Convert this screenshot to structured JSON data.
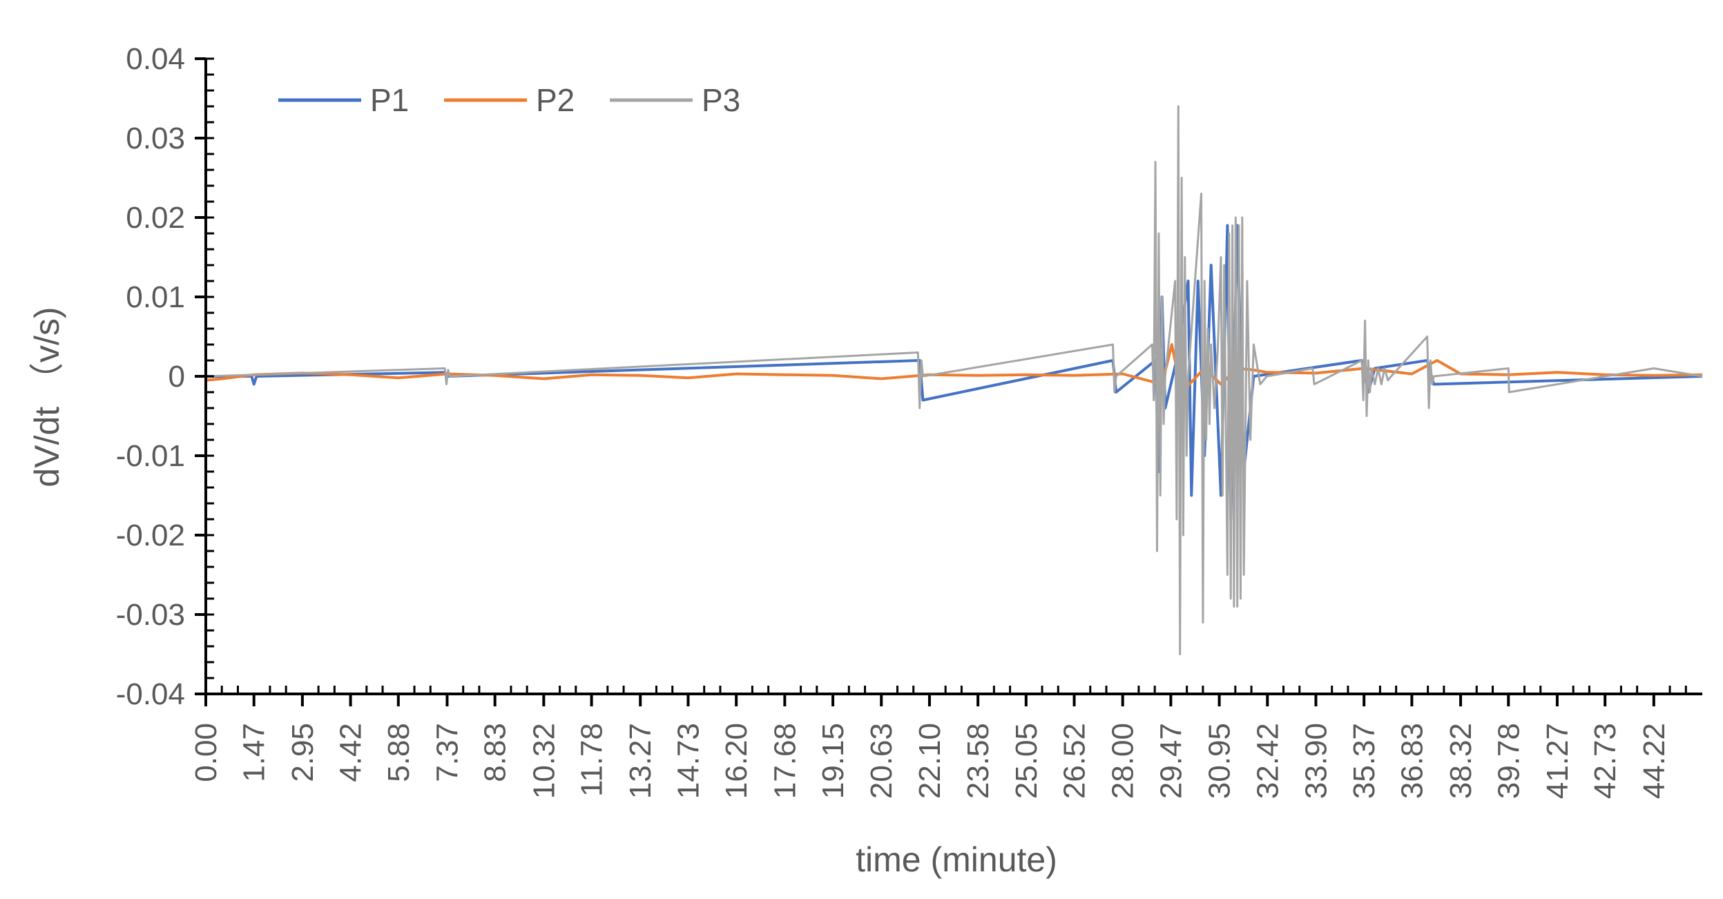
{
  "chart_data": {
    "type": "line",
    "title": "",
    "xlabel": "time (minute)",
    "ylabel": "dV/dt （v/s)",
    "xlim": [
      0,
      45.7
    ],
    "ylim": [
      -0.04,
      0.04
    ],
    "y_ticks": [
      0.04,
      0.03,
      0.02,
      0.01,
      0,
      -0.01,
      -0.02,
      -0.03,
      -0.04
    ],
    "y_tick_labels": [
      "0.04",
      "0.03",
      "0.02",
      "0.01",
      "0",
      "-0.01",
      "-0.02",
      "-0.03",
      "-0.04"
    ],
    "x_ticks": [
      0.0,
      1.47,
      2.95,
      4.42,
      5.88,
      7.37,
      8.83,
      10.32,
      11.78,
      13.27,
      14.73,
      16.2,
      17.68,
      19.15,
      20.63,
      22.1,
      23.58,
      25.05,
      26.52,
      28.0,
      29.47,
      30.95,
      32.42,
      33.9,
      35.37,
      36.83,
      38.32,
      39.78,
      41.27,
      42.73,
      44.22
    ],
    "x_tick_labels": [
      "0.00",
      "1.47",
      "2.95",
      "4.42",
      "5.88",
      "7.37",
      "8.83",
      "10.32",
      "11.78",
      "13.27",
      "14.73",
      "16.20",
      "17.68",
      "19.15",
      "20.63",
      "22.10",
      "23.58",
      "25.05",
      "26.52",
      "28.00",
      "29.47",
      "30.95",
      "32.42",
      "33.90",
      "35.37",
      "36.83",
      "38.32",
      "39.78",
      "41.27",
      "42.73",
      "44.22"
    ],
    "grid": false,
    "legend_position": "top-left",
    "series": [
      {
        "name": "P1",
        "color": "#4472C4",
        "x": [
          0,
          1.4,
          1.47,
          1.55,
          7.3,
          7.4,
          21.8,
          21.9,
          27.7,
          27.8,
          29.0,
          29.1,
          29.2,
          29.3,
          29.7,
          30.0,
          30.1,
          30.3,
          30.5,
          30.7,
          31.0,
          31.2,
          31.3,
          31.5,
          31.7,
          32.0,
          35.3,
          35.5,
          35.7,
          37.3,
          37.5,
          45.7
        ],
        "y": [
          0,
          0,
          -0.001,
          0,
          0.0005,
          0,
          0.002,
          -0.003,
          0.002,
          -0.002,
          0.002,
          -0.012,
          0.01,
          -0.004,
          0.003,
          0.012,
          -0.015,
          0.012,
          -0.01,
          0.014,
          -0.015,
          0.019,
          -0.018,
          0.019,
          -0.012,
          0,
          0.002,
          -0.002,
          0.001,
          0.002,
          -0.001,
          0
        ]
      },
      {
        "name": "P2",
        "color": "#ED7D31",
        "x": [
          0,
          0.5,
          1.47,
          2.95,
          4.42,
          5.88,
          7.37,
          8.83,
          10.32,
          11.78,
          13.27,
          14.73,
          16.2,
          17.68,
          19.15,
          20.63,
          22.1,
          23.58,
          25.05,
          26.52,
          28.0,
          29.2,
          29.5,
          29.8,
          30.5,
          31.0,
          31.5,
          32.0,
          32.42,
          33.9,
          35.37,
          36.83,
          37.6,
          38.32,
          39.78,
          41.27,
          42.73,
          44.22,
          45.7
        ],
        "y": [
          -0.0005,
          -0.0003,
          0.0002,
          0.0004,
          0.0002,
          -0.0002,
          0.0003,
          0.0001,
          -0.0003,
          0.0002,
          0.0001,
          -0.0002,
          0.0003,
          0.0002,
          0.0001,
          -0.0003,
          0.0002,
          0.0001,
          0.0002,
          0.0001,
          0.0003,
          -0.001,
          0.004,
          -0.002,
          0.001,
          -0.001,
          0.001,
          0.0008,
          0.0005,
          0.0004,
          0.001,
          0.0003,
          0.002,
          0.0003,
          0.0002,
          0.0005,
          0.0002,
          0.0001,
          0.0002
        ]
      },
      {
        "name": "P3",
        "color": "#A5A5A5",
        "x": [
          0,
          7.3,
          7.35,
          7.4,
          7.45,
          21.75,
          21.8,
          21.85,
          21.9,
          27.7,
          27.75,
          27.8,
          28.9,
          28.95,
          29.0,
          29.05,
          29.1,
          29.15,
          29.2,
          29.25,
          29.3,
          29.6,
          29.65,
          29.7,
          29.75,
          29.8,
          29.85,
          29.9,
          29.95,
          30.0,
          30.4,
          30.45,
          30.5,
          30.55,
          30.6,
          30.65,
          30.7,
          30.8,
          30.9,
          31.0,
          31.05,
          31.1,
          31.2,
          31.25,
          31.3,
          31.35,
          31.4,
          31.45,
          31.5,
          31.55,
          31.6,
          31.65,
          31.7,
          31.8,
          31.9,
          32.0,
          32.2,
          32.4,
          33.8,
          33.85,
          35.3,
          35.35,
          35.4,
          35.45,
          35.5,
          35.55,
          35.6,
          35.7,
          35.8,
          35.9,
          36.0,
          36.1,
          36.2,
          37.3,
          37.35,
          37.4,
          37.45,
          37.5,
          39.78,
          39.8,
          44.22,
          45.7
        ],
        "y": [
          0,
          0.001,
          -0.001,
          0.0008,
          0,
          0.003,
          -0.004,
          0.002,
          0,
          0.004,
          -0.002,
          0,
          0.004,
          -0.003,
          0.027,
          -0.022,
          0.018,
          -0.015,
          0.01,
          -0.006,
          0,
          0.012,
          -0.018,
          0.034,
          -0.035,
          0.025,
          -0.02,
          0.015,
          -0.01,
          0,
          0.023,
          -0.031,
          0.012,
          -0.008,
          0.006,
          -0.006,
          0.004,
          -0.004,
          0.003,
          0.015,
          -0.015,
          0.014,
          -0.025,
          0.018,
          -0.028,
          0.019,
          -0.029,
          0.02,
          -0.029,
          0.019,
          -0.028,
          0.02,
          -0.025,
          0.012,
          -0.008,
          0.004,
          -0.001,
          0,
          0.001,
          -0.001,
          0.002,
          -0.003,
          0.007,
          -0.005,
          0.002,
          -0.002,
          0.001,
          -0.001,
          0.001,
          -0.001,
          0.001,
          -0.0005,
          0,
          0.005,
          -0.004,
          0.002,
          -0.001,
          0,
          0.001,
          -0.002,
          0.001,
          0
        ]
      }
    ]
  }
}
